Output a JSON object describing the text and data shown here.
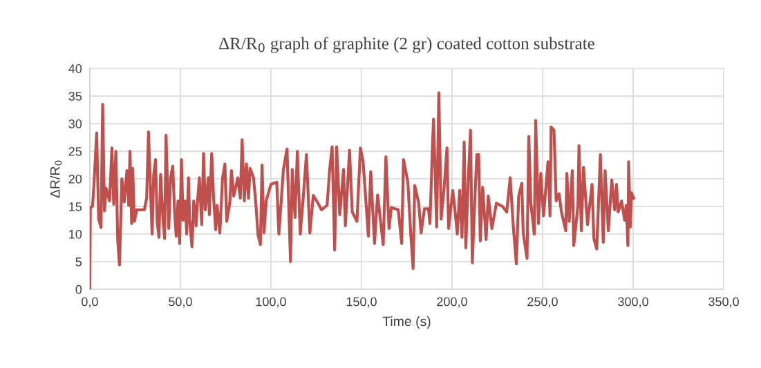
{
  "chart_data": {
    "type": "line",
    "title": "ΔR/R$_{0}$ graph of graphite (2 gr) coated cotton substrate",
    "xlabel": "Time (s)",
    "ylabel": "ΔR/R$_{0}$",
    "xlim": [
      0,
      350
    ],
    "ylim": [
      0,
      40
    ],
    "xticks": [
      {
        "value": 0,
        "label": "0,0"
      },
      {
        "value": 50,
        "label": "50,0"
      },
      {
        "value": 100,
        "label": "100,0"
      },
      {
        "value": 150,
        "label": "150,0"
      },
      {
        "value": 200,
        "label": "200,0"
      },
      {
        "value": 250,
        "label": "250,0"
      },
      {
        "value": 300,
        "label": "300,0"
      },
      {
        "value": 350,
        "label": "350,0"
      }
    ],
    "yticks": [
      0,
      5,
      10,
      15,
      20,
      25,
      30,
      35,
      40
    ],
    "grid": true,
    "marker": "none",
    "line_style": "solid",
    "series": [
      {
        "color": "#c0504d",
        "x": [
          0,
          0.3,
          1.5,
          2.3,
          3.8,
          4.9,
          6.2,
          7.1,
          8.1,
          9,
          10.9,
          12.2,
          13.2,
          14.4,
          15.4,
          16.4,
          17.7,
          19,
          20.5,
          21.5,
          22.2,
          23.1,
          23.7,
          24.6,
          25.9,
          30.1,
          31.4,
          32.4,
          34.4,
          35.3,
          36.3,
          37.2,
          38.2,
          39.1,
          40.4,
          41.3,
          42.1,
          43.6,
          44.6,
          45.8,
          46.8,
          47.7,
          48.7,
          49.6,
          50.6,
          51.5,
          52.6,
          53.5,
          54.5,
          55.1,
          56.4,
          57.4,
          58.7,
          59.4,
          60.5,
          61.8,
          62.8,
          63.8,
          65.4,
          66,
          67.3,
          68.3,
          69.5,
          70.3,
          71.8,
          73.3,
          74.6,
          75.6,
          77.3,
          78.2,
          79.5,
          81.7,
          83.1,
          84.1,
          85.3,
          86.5,
          87.6,
          88.5,
          90.4,
          91.7,
          92.9,
          94.2,
          95.1,
          96.2,
          97.4,
          100,
          103.2,
          104.4,
          106.9,
          108.9,
          110.8,
          111.8,
          113.3,
          114.6,
          116.2,
          117.7,
          119.6,
          121.5,
          123.4,
          126,
          127.9,
          131,
          132.5,
          133.8,
          135.2,
          136.3,
          138,
          140.1,
          141.1,
          143.4,
          144.9,
          147.5,
          149.4,
          150.9,
          153.8,
          155.1,
          157.2,
          158.9,
          162,
          163.5,
          165.2,
          166.5,
          170.3,
          172.2,
          173.2,
          175.6,
          177.2,
          178.5,
          179.4,
          181.6,
          182.9,
          184.8,
          187,
          187.8,
          189.2,
          189.8,
          191.5,
          192.7,
          194,
          195.6,
          197.2,
          198.1,
          200.4,
          201.6,
          202.9,
          204.2,
          205.5,
          206.7,
          207.6,
          208.9,
          210.2,
          211.2,
          212.4,
          213.7,
          214.7,
          215.6,
          216.9,
          218.8,
          220,
          222,
          224.5,
          227.9,
          230.2,
          232.1,
          233.8,
          235.5,
          236.8,
          238.5,
          239.3,
          241.4,
          242.4,
          243.5,
          245.4,
          246.2,
          247.7,
          249,
          250.5,
          253,
          254.1,
          254.7,
          256.3,
          257.5,
          259.1,
          260.4,
          262.8,
          263.4,
          264.7,
          266.4,
          267.2,
          269.5,
          270.1,
          271.4,
          272.6,
          274.8,
          277.3,
          278.3,
          279.9,
          281.9,
          283.5,
          284.5,
          286.3,
          288.2,
          289.8,
          290.8,
          291.7,
          293.6,
          295.3,
          296.2,
          297.1,
          297.5,
          298.5,
          299,
          300.3
        ],
        "values": [
          0,
          14.8,
          15,
          19,
          28.3,
          12.7,
          11.2,
          33.5,
          14.2,
          18.3,
          16,
          25.6,
          15.4,
          25,
          9,
          4.4,
          20,
          15.8,
          21.5,
          15.2,
          25,
          11.9,
          21.9,
          12.3,
          14.4,
          14.4,
          16.5,
          28.5,
          10,
          20.8,
          23.5,
          12.3,
          9.4,
          20.8,
          12.7,
          9.2,
          27.9,
          11,
          20.2,
          22.3,
          14.2,
          9.6,
          16,
          8.3,
          23.5,
          12.5,
          16,
          10,
          20.2,
          12.7,
          7.7,
          16,
          11.5,
          15.6,
          20.2,
          11.7,
          24.6,
          14.4,
          20.2,
          13.5,
          24.6,
          16.9,
          10.8,
          15.2,
          10.2,
          20.2,
          22.7,
          12.3,
          15.6,
          21.5,
          16.9,
          20.2,
          16.5,
          27.1,
          16,
          22.7,
          16.5,
          21.9,
          20.2,
          15.4,
          9.8,
          8.1,
          22.5,
          10.2,
          16,
          19,
          19.4,
          10,
          21.7,
          25.4,
          5,
          21.7,
          13,
          25,
          10,
          16,
          24.4,
          10.2,
          17,
          15.6,
          14.4,
          15.2,
          21.9,
          25.8,
          7.1,
          25.8,
          13.5,
          21.7,
          11.5,
          25.2,
          14,
          12.3,
          25.6,
          23.1,
          9.6,
          21.3,
          8.3,
          17.1,
          8.1,
          24,
          11,
          14.8,
          14.4,
          8.3,
          23.5,
          19.4,
          10,
          3.75,
          18.8,
          15.6,
          10.2,
          14.6,
          14.6,
          11.9,
          26,
          30.8,
          11.3,
          35.6,
          12.7,
          18.3,
          25.6,
          11,
          17.9,
          14.4,
          10,
          17.9,
          9.4,
          26.7,
          7.5,
          19.4,
          28.8,
          4.8,
          14.8,
          24.4,
          24.4,
          8.75,
          18.5,
          9,
          16.9,
          11,
          15.6,
          15,
          14,
          20.2,
          11.5,
          4.6,
          16.9,
          19.2,
          10.2,
          5.6,
          27.7,
          15.6,
          10,
          30.6,
          11.9,
          21,
          13.3,
          23.1,
          13.3,
          29.4,
          28.8,
          16,
          17.3,
          14,
          10.6,
          21,
          12.3,
          21.5,
          7.9,
          15.2,
          26,
          10.6,
          22.1,
          11.7,
          19,
          9.2,
          7.3,
          24.4,
          8.5,
          21.5,
          10.6,
          19.8,
          14.4,
          19,
          14,
          16,
          12.5,
          15.2,
          7.9,
          23.1,
          11.3,
          17.5,
          16.5
        ]
      }
    ]
  }
}
